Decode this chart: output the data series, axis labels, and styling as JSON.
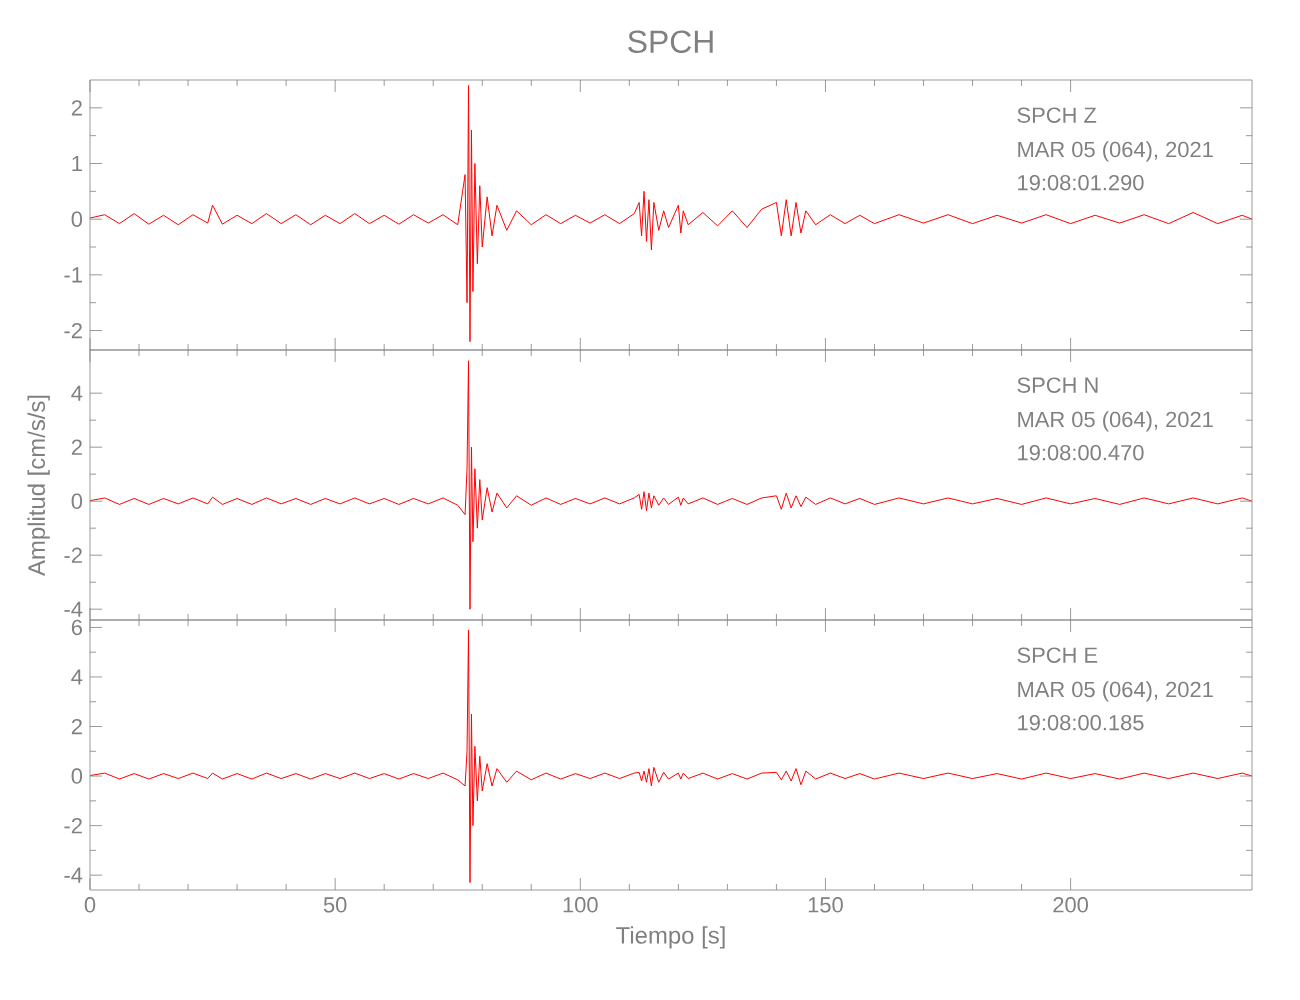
{
  "chart_data": [
    {
      "type": "line",
      "title": "SPCH",
      "tick_labels": "y",
      "xlim": [
        0,
        237
      ],
      "xticks": [
        0,
        50,
        100,
        150,
        200
      ],
      "ylim": [
        -2.35,
        2.5
      ],
      "yticks": [
        -2,
        -1,
        0,
        1,
        2
      ],
      "annotations": [
        "SPCH Z",
        "MAR 05 (064), 2021",
        "19:08:01.290"
      ],
      "series": [
        {
          "color": "#ff0000",
          "x": [
            0,
            3,
            6,
            9,
            12,
            15,
            18,
            21,
            24,
            25,
            27,
            30,
            33,
            36,
            39,
            42,
            45,
            48,
            51,
            54,
            57,
            60,
            63,
            66,
            69,
            72,
            75,
            76.5,
            76.9,
            77.2,
            77.5,
            77.8,
            78.1,
            78.5,
            79,
            79.5,
            80,
            81,
            82,
            83,
            85,
            87,
            90,
            93,
            96,
            99,
            102,
            105,
            108,
            111,
            112,
            112.5,
            113,
            113.5,
            114,
            114.5,
            115,
            116,
            117,
            118,
            120,
            120.5,
            121,
            122,
            125,
            128,
            131,
            134,
            137,
            140,
            141,
            142,
            143,
            144,
            145,
            146,
            148,
            151,
            154,
            157,
            160,
            165,
            170,
            175,
            180,
            185,
            190,
            195,
            200,
            205,
            210,
            215,
            220,
            225,
            230,
            235,
            237
          ],
          "values": [
            0.02,
            0.08,
            -0.08,
            0.1,
            -0.09,
            0.07,
            -0.1,
            0.08,
            -0.07,
            0.25,
            -0.09,
            0.07,
            -0.08,
            0.1,
            -0.08,
            0.08,
            -0.1,
            0.07,
            -0.08,
            0.1,
            -0.08,
            0.07,
            -0.09,
            0.08,
            -0.07,
            0.08,
            -0.1,
            0.8,
            -1.5,
            2.4,
            -2.2,
            1.6,
            -1.3,
            1.0,
            -0.8,
            0.6,
            -0.5,
            0.4,
            -0.3,
            0.25,
            -0.2,
            0.15,
            -0.1,
            0.08,
            -0.08,
            0.07,
            -0.07,
            0.08,
            -0.08,
            0.1,
            0.3,
            -0.3,
            0.5,
            -0.4,
            0.35,
            -0.55,
            0.3,
            -0.2,
            0.15,
            -0.15,
            0.25,
            -0.25,
            0.15,
            -0.1,
            0.12,
            -0.12,
            0.15,
            -0.15,
            0.18,
            0.3,
            -0.3,
            0.35,
            -0.3,
            0.3,
            -0.25,
            0.15,
            -0.1,
            0.08,
            -0.08,
            0.07,
            -0.08,
            0.08,
            -0.07,
            0.08,
            -0.08,
            0.07,
            -0.07,
            0.08,
            -0.08,
            0.07,
            -0.07,
            0.08,
            -0.08,
            0.12,
            -0.08,
            0.07,
            0
          ]
        }
      ]
    },
    {
      "type": "line",
      "ylabel": "Amplitud [cm/s/s]",
      "tick_labels": "y",
      "xlim": [
        0,
        237
      ],
      "xticks": [
        0,
        50,
        100,
        150,
        200
      ],
      "ylim": [
        -4.4,
        5.6
      ],
      "yticks": [
        -4,
        -2,
        0,
        2,
        4
      ],
      "annotations": [
        "SPCH N",
        "MAR 05 (064), 2021",
        "19:08:00.470"
      ],
      "series": [
        {
          "color": "#ff0000",
          "x": [
            0,
            3,
            6,
            9,
            12,
            15,
            18,
            21,
            24,
            25,
            27,
            30,
            33,
            36,
            39,
            42,
            45,
            48,
            51,
            54,
            57,
            60,
            63,
            66,
            69,
            72,
            75,
            76.5,
            76.9,
            77.2,
            77.5,
            77.8,
            78.1,
            78.5,
            79,
            79.5,
            80,
            81,
            82,
            83,
            85,
            87,
            90,
            93,
            96,
            99,
            102,
            105,
            108,
            111,
            112,
            112.5,
            113,
            113.5,
            114,
            114.5,
            115,
            116,
            117,
            118,
            120,
            120.5,
            121,
            122,
            125,
            128,
            131,
            134,
            137,
            140,
            141,
            142,
            143,
            144,
            145,
            146,
            148,
            151,
            154,
            157,
            160,
            165,
            170,
            175,
            180,
            185,
            190,
            195,
            200,
            205,
            210,
            215,
            220,
            225,
            230,
            235,
            237
          ],
          "values": [
            0.02,
            0.12,
            -0.12,
            0.1,
            -0.12,
            0.1,
            -0.1,
            0.12,
            -0.1,
            0.15,
            -0.12,
            0.1,
            -0.12,
            0.12,
            -0.1,
            0.1,
            -0.12,
            0.1,
            -0.1,
            0.12,
            -0.1,
            0.1,
            -0.12,
            0.1,
            -0.1,
            0.12,
            -0.15,
            -0.5,
            1.2,
            5.2,
            -4.0,
            2.0,
            -1.5,
            1.2,
            -1.0,
            0.8,
            -0.7,
            0.5,
            -0.4,
            0.3,
            -0.25,
            0.2,
            -0.15,
            0.12,
            -0.12,
            0.1,
            -0.1,
            0.12,
            -0.1,
            0.12,
            0.25,
            -0.3,
            0.35,
            -0.35,
            0.3,
            -0.25,
            0.2,
            -0.15,
            0.12,
            -0.12,
            0.15,
            -0.15,
            0.12,
            -0.1,
            0.12,
            -0.12,
            0.1,
            -0.12,
            0.12,
            0.2,
            -0.3,
            0.3,
            -0.25,
            0.2,
            -0.2,
            0.15,
            -0.12,
            0.12,
            -0.1,
            0.1,
            -0.12,
            0.12,
            -0.1,
            0.12,
            -0.1,
            0.1,
            -0.12,
            0.12,
            -0.1,
            0.1,
            -0.12,
            0.12,
            -0.1,
            0.12,
            -0.1,
            0.12,
            0
          ]
        }
      ]
    },
    {
      "type": "line",
      "xlabel": "Tiempo [s]",
      "xlim": [
        0,
        237
      ],
      "xticks": [
        0,
        50,
        100,
        150,
        200
      ],
      "ylim": [
        -4.6,
        6.3
      ],
      "yticks": [
        -4,
        -2,
        0,
        2,
        4,
        6
      ],
      "annotations": [
        "SPCH E",
        "MAR 05 (064), 2021",
        "19:08:00.185"
      ],
      "series": [
        {
          "color": "#ff0000",
          "x": [
            0,
            3,
            6,
            9,
            12,
            15,
            18,
            21,
            24,
            25,
            27,
            30,
            33,
            36,
            39,
            42,
            45,
            48,
            51,
            54,
            57,
            60,
            63,
            66,
            69,
            72,
            75,
            76.5,
            76.9,
            77.2,
            77.5,
            77.8,
            78.1,
            78.5,
            79,
            79.5,
            80,
            81,
            82,
            83,
            85,
            87,
            90,
            93,
            96,
            99,
            102,
            105,
            108,
            111,
            112,
            112.5,
            113,
            113.5,
            114,
            114.5,
            115,
            116,
            117,
            118,
            120,
            120.5,
            121,
            122,
            125,
            128,
            131,
            134,
            137,
            140,
            141,
            142,
            143,
            144,
            145,
            146,
            148,
            151,
            154,
            157,
            160,
            165,
            170,
            175,
            180,
            185,
            190,
            195,
            200,
            205,
            210,
            215,
            220,
            225,
            230,
            235,
            237
          ],
          "values": [
            0.02,
            0.12,
            -0.12,
            0.1,
            -0.12,
            0.1,
            -0.1,
            0.12,
            -0.1,
            0.12,
            -0.12,
            0.1,
            -0.12,
            0.12,
            -0.1,
            0.1,
            -0.12,
            0.1,
            -0.1,
            0.12,
            -0.1,
            0.1,
            -0.12,
            0.1,
            -0.1,
            0.12,
            -0.15,
            -0.4,
            1.0,
            5.9,
            -4.3,
            2.5,
            -2.0,
            1.2,
            -1.0,
            0.8,
            -0.6,
            0.5,
            -0.4,
            0.3,
            -0.25,
            0.2,
            -0.15,
            0.12,
            -0.12,
            0.1,
            -0.1,
            0.12,
            -0.1,
            0.12,
            0.15,
            -0.2,
            0.2,
            -0.25,
            0.3,
            -0.4,
            0.35,
            -0.25,
            0.15,
            -0.12,
            0.12,
            -0.12,
            0.12,
            -0.1,
            0.12,
            -0.12,
            0.1,
            -0.12,
            0.12,
            0.15,
            -0.15,
            0.2,
            -0.2,
            0.3,
            -0.35,
            0.2,
            -0.12,
            0.12,
            -0.1,
            0.1,
            -0.12,
            0.12,
            -0.1,
            0.12,
            -0.1,
            0.1,
            -0.12,
            0.12,
            -0.1,
            0.1,
            -0.12,
            0.12,
            -0.1,
            0.12,
            -0.1,
            0.12,
            0
          ]
        }
      ]
    }
  ]
}
